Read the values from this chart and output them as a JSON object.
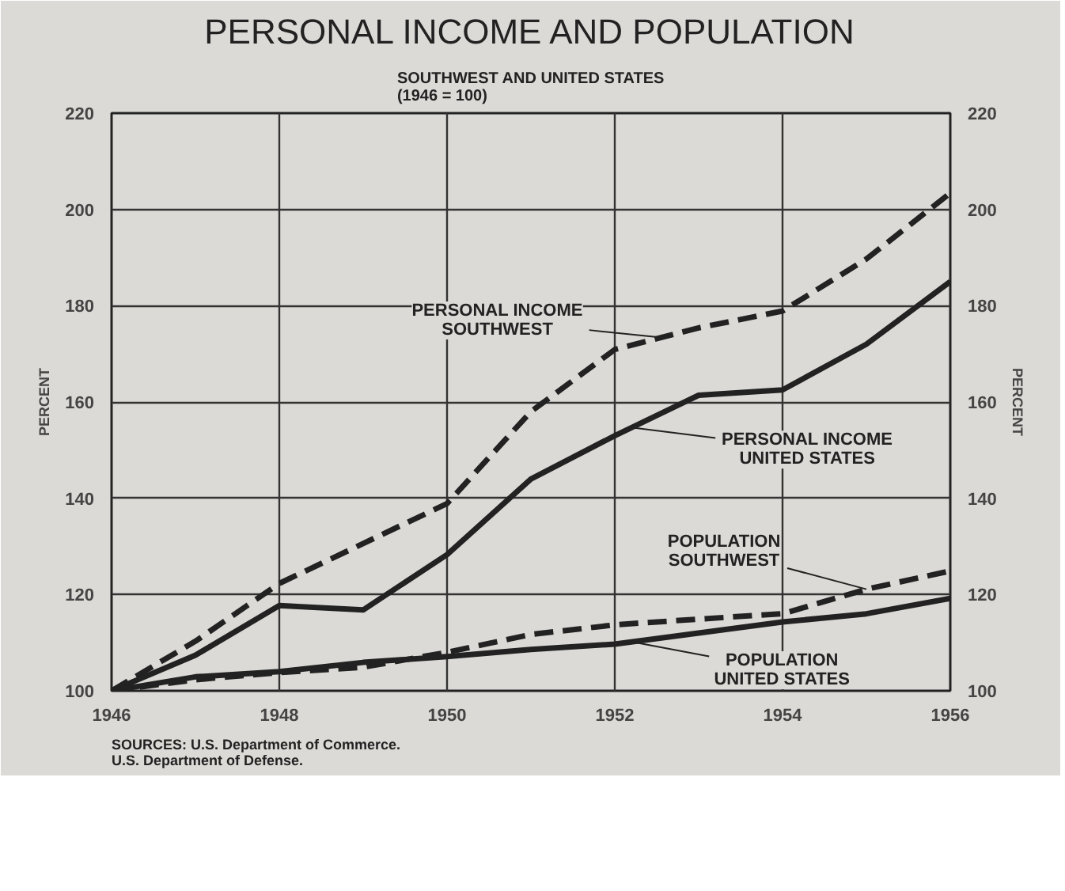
{
  "chart_data": {
    "type": "line",
    "title": "PERSONAL INCOME AND POPULATION",
    "subtitle": "SOUTHWEST AND UNITED STATES\n(1946 = 100)",
    "ylabel": "PERCENT",
    "y2label": "PERCENT",
    "x": [
      1946,
      1947,
      1948,
      1949,
      1950,
      1951,
      1952,
      1953,
      1954,
      1955,
      1956
    ],
    "xlim": [
      1946,
      1956
    ],
    "xticks": [
      1946,
      1948,
      1950,
      1952,
      1954,
      1956
    ],
    "ylim": [
      100,
      220
    ],
    "yticks": [
      100,
      120,
      140,
      160,
      180,
      200,
      220
    ],
    "y2lim": [
      100,
      220
    ],
    "y2ticks": [
      100,
      120,
      140,
      160,
      180,
      200,
      220
    ],
    "grid": true,
    "series": [
      {
        "color": "#222222",
        "line_style": "dashed",
        "values": [
          100,
          110.3,
          122.3,
          130.6,
          138.9,
          158,
          170.9,
          175.4,
          178.9,
          189.7,
          203.4
        ]
      },
      {
        "color": "#222222",
        "line_style": "solid",
        "values": [
          100,
          107.4,
          117.7,
          116.8,
          128.3,
          144,
          153,
          161.4,
          162.5,
          172,
          185
        ]
      },
      {
        "color": "#222222",
        "line_style": "dashed",
        "values": [
          100,
          102.3,
          103.8,
          104.9,
          108,
          111.7,
          113.7,
          114.9,
          116,
          121.1,
          124.9
        ]
      },
      {
        "color": "#222222",
        "line_style": "solid",
        "values": [
          100,
          102.9,
          104,
          105.9,
          107.1,
          108.6,
          109.7,
          112,
          114.3,
          116,
          119.2
        ]
      }
    ],
    "annotations": [
      {
        "text": "PERSONAL INCOME\nSOUTHWEST",
        "x": 1952.6,
        "y": 173.3
      },
      {
        "text": "PERSONAL INCOME\nUNITED STATES",
        "x": 1952.2,
        "y": 154.7
      },
      {
        "text": "POPULATION\nSOUTHWEST",
        "x": 1955.0,
        "y": 121.1
      },
      {
        "text": "POPULATION\nUNITED STATES",
        "x": 1952.2,
        "y": 110.2
      },
      "SOURCES: U.S. Department of Commerce.\n              U.S. Department of Defense."
    ]
  }
}
